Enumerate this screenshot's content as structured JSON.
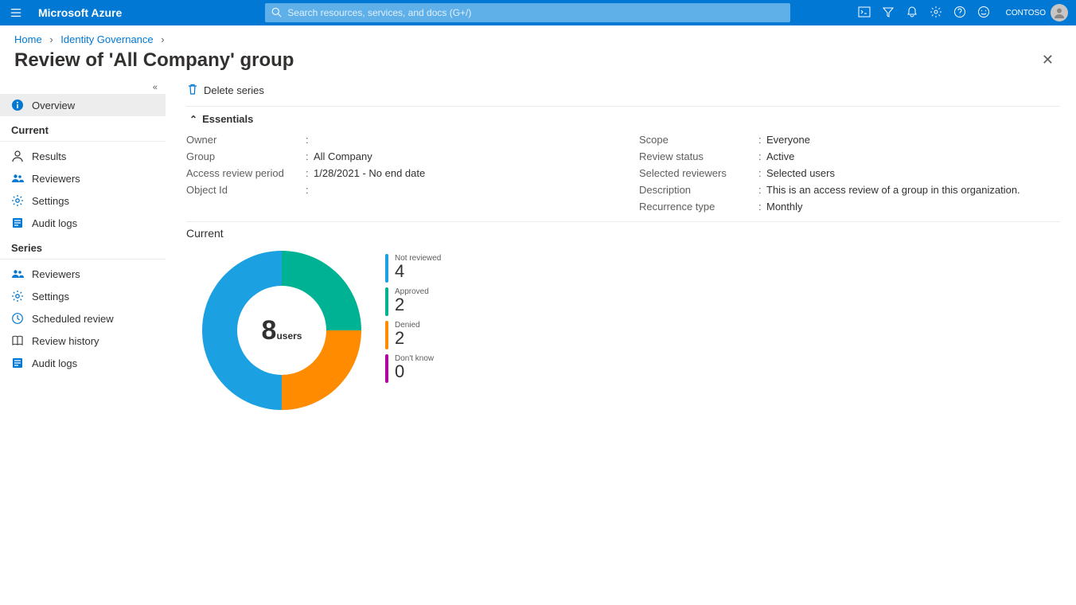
{
  "brand": "Microsoft Azure",
  "search_placeholder": "Search resources, services, and docs (G+/)",
  "tenant": "CONTOSO",
  "tenant_email": "",
  "breadcrumb": {
    "home": "Home",
    "governance": "Identity Governance"
  },
  "page_title": "Review of 'All Company' group",
  "cmdbar": {
    "delete": "Delete series"
  },
  "sidebar": {
    "overview": "Overview",
    "section_current": "Current",
    "results": "Results",
    "reviewers": "Reviewers",
    "settings": "Settings",
    "auditlogs": "Audit logs",
    "section_series": "Series",
    "s_reviewers": "Reviewers",
    "s_settings": "Settings",
    "s_scheduled": "Scheduled review",
    "s_history": "Review history",
    "s_audit": "Audit logs"
  },
  "essentials": {
    "title": "Essentials",
    "left": {
      "owner_k": "Owner",
      "owner_v": "",
      "group_k": "Group",
      "group_v": "All Company",
      "period_k": "Access review period",
      "period_v": "1/28/2021 - No end date",
      "obj_k": "Object Id",
      "obj_v": ""
    },
    "right": {
      "scope_k": "Scope",
      "scope_v": "Everyone",
      "status_k": "Review status",
      "status_v": "Active",
      "selrev_k": "Selected reviewers",
      "selrev_v": "Selected users",
      "desc_k": "Description",
      "desc_v": "This is an access review of a group in this organization.",
      "rec_k": "Recurrence type",
      "rec_v": "Monthly"
    }
  },
  "current": {
    "title": "Current",
    "total_value": "8",
    "total_label": "users",
    "donut": {
      "type": "donut",
      "size": 200,
      "inner_radius": 56,
      "outer_radius": 100,
      "background_color": "#ffffff",
      "slices": [
        {
          "label": "Not reviewed",
          "value": 4,
          "color": "#1ba1e2"
        },
        {
          "label": "Approved",
          "value": 2,
          "color": "#00b294"
        },
        {
          "label": "Denied",
          "value": 2,
          "color": "#ff8c00"
        },
        {
          "label": "Don't know",
          "value": 0,
          "color": "#b4009e"
        }
      ]
    },
    "legend": [
      {
        "label": "Not reviewed",
        "value": "4",
        "color": "#1ba1e2"
      },
      {
        "label": "Approved",
        "value": "2",
        "color": "#00b294"
      },
      {
        "label": "Denied",
        "value": "2",
        "color": "#ff8c00"
      },
      {
        "label": "Don't know",
        "value": "0",
        "color": "#b4009e"
      }
    ]
  },
  "icon_colors": {
    "info": "#0078d4",
    "person": "#323130",
    "reviewers": "#0078d4",
    "gear": "#0078d4",
    "audit": "#0078d4",
    "clock": "#0078d4",
    "book": "#323130"
  }
}
